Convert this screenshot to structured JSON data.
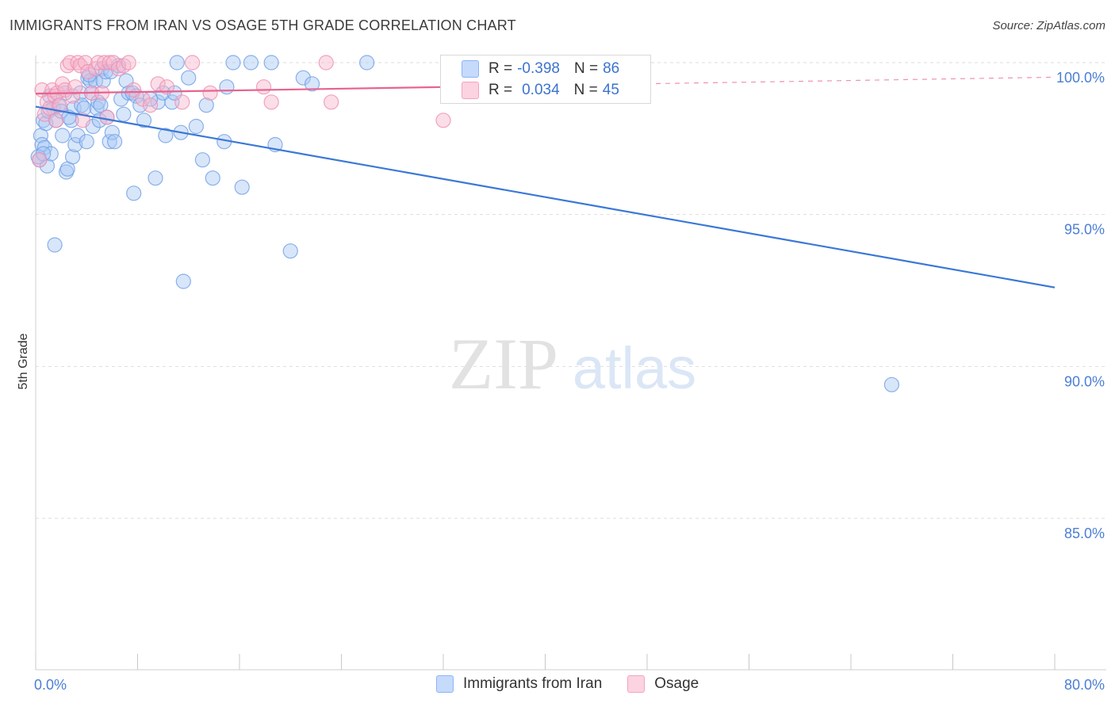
{
  "header": {
    "title": "IMMIGRANTS FROM IRAN VS OSAGE 5TH GRADE CORRELATION CHART",
    "source": "Source: ZipAtlas.com"
  },
  "watermark": {
    "zip": "ZIP",
    "atlas": "atlas"
  },
  "legend": {
    "rows": [
      {
        "r_label": "R = ",
        "r_value": "-0.398",
        "n_label": "N = ",
        "n_value": "86",
        "color": "#8ab4f8",
        "fill": "#c6dafc"
      },
      {
        "r_label": "R = ",
        "r_value": "0.034",
        "n_label": "N = ",
        "n_value": "45",
        "color": "#f4a3bf",
        "fill": "#fcd3e1"
      }
    ]
  },
  "bottom_legend": {
    "items": [
      {
        "label": "Immigrants from Iran",
        "color": "#8ab4f8",
        "fill": "#c6dafc"
      },
      {
        "label": "Osage",
        "color": "#f4a3bf",
        "fill": "#fcd3e1"
      }
    ]
  },
  "chart_data": {
    "type": "scatter",
    "title": "IMMIGRANTS FROM IRAN VS OSAGE 5TH GRADE CORRELATION CHART",
    "xlabel": "",
    "ylabel": "5th Grade",
    "xlim": [
      0,
      80
    ],
    "ylim": [
      80.3,
      100.7
    ],
    "x_tick_labels": [
      {
        "value": 0,
        "label": "0.0%"
      },
      {
        "value": 80,
        "label": "80.0%"
      }
    ],
    "x_minor_ticks": [
      0,
      8,
      16,
      24,
      32,
      40,
      48,
      56,
      64,
      72,
      80
    ],
    "y_ticks": [
      {
        "value": 100,
        "label": "100.0%"
      },
      {
        "value": 95,
        "label": "95.0%"
      },
      {
        "value": 90,
        "label": "90.0%"
      },
      {
        "value": 85,
        "label": "85.0%"
      }
    ],
    "grid": true,
    "series": [
      {
        "name": "Immigrants from Iran",
        "color": "#3a78d6",
        "marker_fill": "#a9c7f5",
        "trend": {
          "x0": 0,
          "y0": 98.55,
          "x1": 80,
          "y1": 92.6,
          "dash_from": null
        },
        "points": [
          [
            0.3,
            96.8
          ],
          [
            0.4,
            97.6
          ],
          [
            0.5,
            97.3
          ],
          [
            0.6,
            98.1
          ],
          [
            0.7,
            97.2
          ],
          [
            0.8,
            98.0
          ],
          [
            0.9,
            96.6
          ],
          [
            1.0,
            98.4
          ],
          [
            1.2,
            97.0
          ],
          [
            1.4,
            98.5
          ],
          [
            1.5,
            94.0
          ],
          [
            1.6,
            98.1
          ],
          [
            1.8,
            98.6
          ],
          [
            2.0,
            98.4
          ],
          [
            2.1,
            97.6
          ],
          [
            2.3,
            99.0
          ],
          [
            2.4,
            96.4
          ],
          [
            2.5,
            96.5
          ],
          [
            2.8,
            98.1
          ],
          [
            2.9,
            96.9
          ],
          [
            3.0,
            98.5
          ],
          [
            3.1,
            97.3
          ],
          [
            3.3,
            97.6
          ],
          [
            3.5,
            99.0
          ],
          [
            3.6,
            98.6
          ],
          [
            3.8,
            98.5
          ],
          [
            4.0,
            97.4
          ],
          [
            4.1,
            99.5
          ],
          [
            4.3,
            99.4
          ],
          [
            4.4,
            99.0
          ],
          [
            4.5,
            97.9
          ],
          [
            4.7,
            99.4
          ],
          [
            4.8,
            98.5
          ],
          [
            4.9,
            98.7
          ],
          [
            5.0,
            98.1
          ],
          [
            5.1,
            98.6
          ],
          [
            5.2,
            99.8
          ],
          [
            5.3,
            99.4
          ],
          [
            5.5,
            99.7
          ],
          [
            5.6,
            98.2
          ],
          [
            5.8,
            97.4
          ],
          [
            5.9,
            99.7
          ],
          [
            6.0,
            97.7
          ],
          [
            6.2,
            97.4
          ],
          [
            6.7,
            98.8
          ],
          [
            6.9,
            98.3
          ],
          [
            7.1,
            99.4
          ],
          [
            7.3,
            99.0
          ],
          [
            7.6,
            99.0
          ],
          [
            7.7,
            95.7
          ],
          [
            7.9,
            98.9
          ],
          [
            8.2,
            98.6
          ],
          [
            8.5,
            98.1
          ],
          [
            9.4,
            96.2
          ],
          [
            9.6,
            98.7
          ],
          [
            10.0,
            99.0
          ],
          [
            10.2,
            97.6
          ],
          [
            10.7,
            98.7
          ],
          [
            10.9,
            99.0
          ],
          [
            11.1,
            100.0
          ],
          [
            11.4,
            97.7
          ],
          [
            11.6,
            92.8
          ],
          [
            12.0,
            99.5
          ],
          [
            12.6,
            97.9
          ],
          [
            13.1,
            96.8
          ],
          [
            13.4,
            98.6
          ],
          [
            13.9,
            96.2
          ],
          [
            14.8,
            97.4
          ],
          [
            15.0,
            99.2
          ],
          [
            15.5,
            100.0
          ],
          [
            16.2,
            95.9
          ],
          [
            16.9,
            100.0
          ],
          [
            18.5,
            100.0
          ],
          [
            18.8,
            97.3
          ],
          [
            20.0,
            93.8
          ],
          [
            21.0,
            99.5
          ],
          [
            21.7,
            99.3
          ],
          [
            26.0,
            100.0
          ],
          [
            67.2,
            89.4
          ],
          [
            0.2,
            96.9
          ],
          [
            1.1,
            98.9
          ],
          [
            2.6,
            98.2
          ],
          [
            6.5,
            99.9
          ],
          [
            9.0,
            98.8
          ],
          [
            0.6,
            97.0
          ],
          [
            4.2,
            99.6
          ]
        ]
      },
      {
        "name": "Osage",
        "color": "#e8638f",
        "marker_fill": "#f7b6cc",
        "trend": {
          "x0": 0,
          "y0": 98.98,
          "x1": 80,
          "y1": 99.52,
          "dash_from": 33
        },
        "points": [
          [
            0.3,
            96.8
          ],
          [
            0.5,
            99.1
          ],
          [
            0.7,
            98.3
          ],
          [
            0.9,
            98.7
          ],
          [
            1.1,
            98.5
          ],
          [
            1.3,
            99.1
          ],
          [
            1.5,
            98.9
          ],
          [
            1.7,
            99.0
          ],
          [
            1.9,
            98.6
          ],
          [
            2.1,
            99.3
          ],
          [
            2.3,
            99.1
          ],
          [
            2.5,
            99.9
          ],
          [
            2.7,
            100.0
          ],
          [
            2.9,
            98.9
          ],
          [
            3.1,
            99.2
          ],
          [
            3.3,
            100.0
          ],
          [
            3.5,
            99.9
          ],
          [
            3.7,
            98.1
          ],
          [
            3.9,
            100.0
          ],
          [
            4.1,
            99.7
          ],
          [
            4.4,
            99.0
          ],
          [
            4.7,
            99.8
          ],
          [
            4.9,
            100.0
          ],
          [
            5.2,
            99.0
          ],
          [
            5.4,
            100.0
          ],
          [
            5.6,
            98.2
          ],
          [
            5.8,
            100.0
          ],
          [
            6.1,
            100.0
          ],
          [
            6.5,
            99.8
          ],
          [
            6.9,
            99.9
          ],
          [
            7.3,
            100.0
          ],
          [
            7.7,
            99.1
          ],
          [
            8.4,
            98.8
          ],
          [
            9.0,
            98.6
          ],
          [
            9.6,
            99.3
          ],
          [
            10.3,
            99.2
          ],
          [
            11.5,
            98.7
          ],
          [
            12.3,
            100.0
          ],
          [
            13.7,
            99.0
          ],
          [
            17.9,
            99.2
          ],
          [
            18.5,
            98.7
          ],
          [
            22.8,
            100.0
          ],
          [
            23.2,
            98.7
          ],
          [
            32.0,
            98.1
          ],
          [
            1.6,
            98.1
          ]
        ]
      }
    ]
  }
}
